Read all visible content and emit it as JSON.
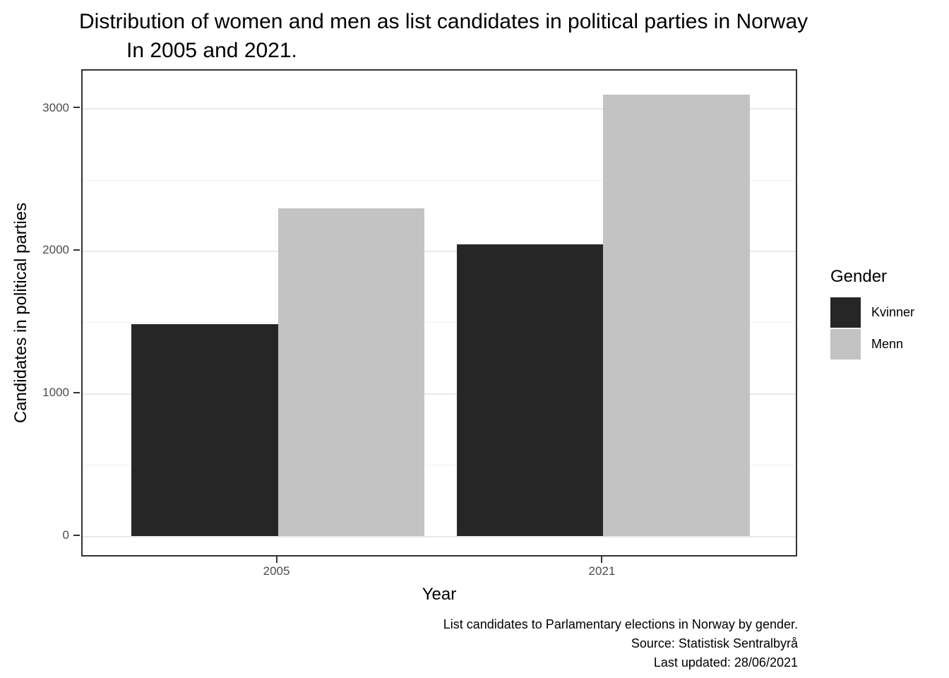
{
  "title": {
    "line1": "Distribution of women and men as list candidates in political parties in Norway",
    "line2": "In 2005 and 2021."
  },
  "chart_data": {
    "type": "bar",
    "categories": [
      "2005",
      "2021"
    ],
    "series": [
      {
        "name": "Kvinner",
        "color": "#262626",
        "values": [
          1490,
          2050
        ]
      },
      {
        "name": "Menn",
        "color": "#c3c3c3",
        "values": [
          2300,
          3100
        ]
      }
    ],
    "title": "Distribution of women and men as list candidates in political parties in Norway In 2005 and 2021.",
    "xlabel": "Year",
    "ylabel": "Candidates in political parties",
    "ylim": [
      0,
      3270
    ],
    "yticks": [
      0,
      1000,
      2000,
      3000
    ],
    "yticks_minor": [
      500,
      1500,
      2500
    ],
    "grid": true,
    "legend_title": "Gender",
    "legend_position": "right"
  },
  "axes": {
    "x": {
      "label": "Year"
    },
    "y": {
      "label": "Candidates in political parties"
    }
  },
  "legend": {
    "title": "Gender",
    "items": [
      {
        "label": "Kvinner",
        "color": "#262626"
      },
      {
        "label": "Menn",
        "color": "#c3c3c3"
      }
    ]
  },
  "caption": {
    "line1": "List candidates to Parlamentary elections in Norway by gender.",
    "line2": "Source: Statistisk Sentralbyrå",
    "line3": "Last updated: 28/06/2021"
  },
  "colors": {
    "bar_dark": "#262626",
    "bar_light": "#c3c3c3",
    "panel_border": "#333333",
    "grid_major": "#e8e8e8",
    "grid_minor": "#f0f0f0",
    "tick_text": "#4d4d4d"
  }
}
